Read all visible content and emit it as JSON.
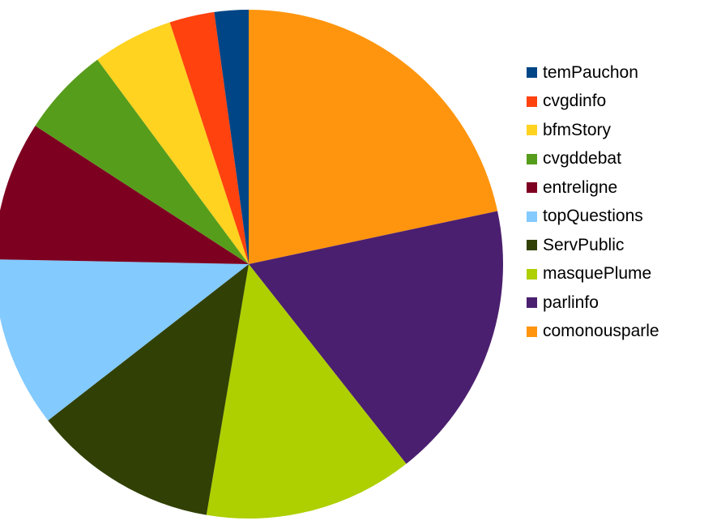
{
  "chart_data": {
    "type": "pie",
    "title": "",
    "slices": [
      {
        "label": "comonousparle",
        "value": 22.0,
        "color": "#FF950E"
      },
      {
        "label": "parlinfo",
        "value": 18.0,
        "color": "#4B1F6F"
      },
      {
        "label": "masquePlume",
        "value": 13.5,
        "color": "#AECF00"
      },
      {
        "label": "ServPublic",
        "value": 12.0,
        "color": "#314004"
      },
      {
        "label": "topQuestions",
        "value": 11.0,
        "color": "#83CAFF"
      },
      {
        "label": "entreligne",
        "value": 9.0,
        "color": "#7E0021"
      },
      {
        "label": "cvgddebat",
        "value": 5.8,
        "color": "#579D1C"
      },
      {
        "label": "bfmStory",
        "value": 5.2,
        "color": "#FFD320"
      },
      {
        "label": "cvgdinfo",
        "value": 2.9,
        "color": "#FF420E"
      },
      {
        "label": "temPauchon",
        "value": 2.2,
        "color": "#004586"
      }
    ],
    "legend_order": [
      "temPauchon",
      "cvgdinfo",
      "bfmStory",
      "cvgddebat",
      "entreligne",
      "topQuestions",
      "ServPublic",
      "masquePlume",
      "parlinfo",
      "comonousparle"
    ],
    "legend_position": "right",
    "start_direction": "top",
    "direction": "clockwise"
  }
}
